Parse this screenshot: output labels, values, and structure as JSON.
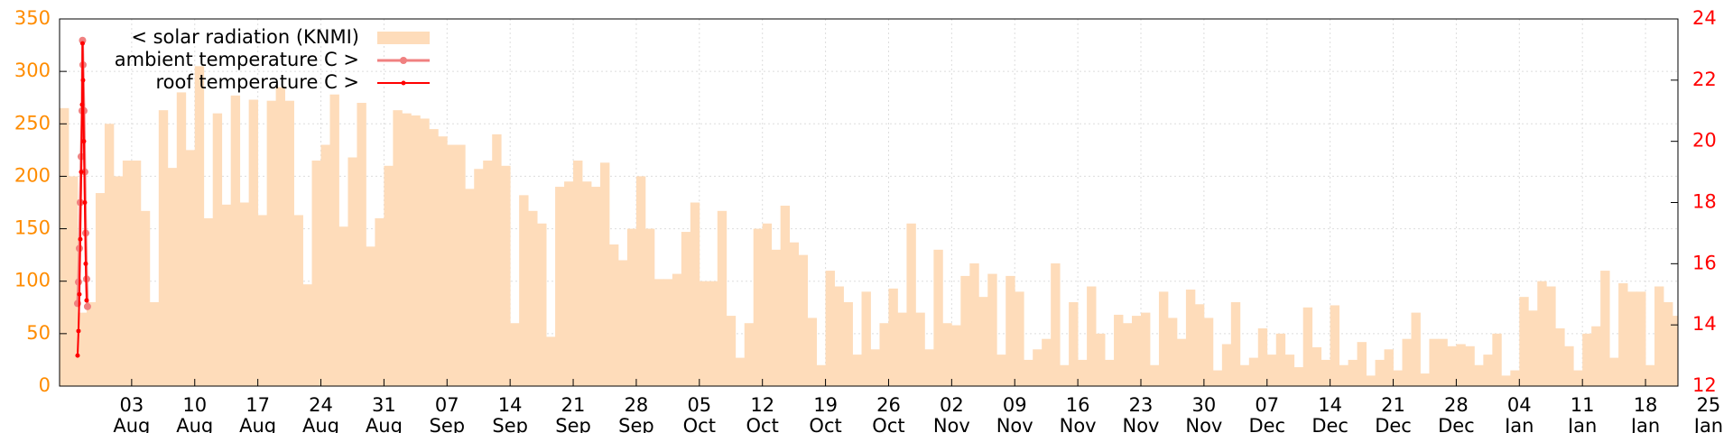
{
  "chart_data": {
    "type": "bar-line",
    "legend": "upper left",
    "grid": true,
    "xlim": [
      0,
      179.6
    ],
    "ylim": [
      0,
      350
    ],
    "yticks": [
      0,
      50,
      100,
      150,
      200,
      250,
      300,
      350
    ],
    "y2lim": [
      12,
      24
    ],
    "y2ticks": [
      12,
      14,
      16,
      18,
      20,
      22,
      24
    ],
    "xticks": [
      {
        "value": 8,
        "label": [
          "03",
          "Aug"
        ]
      },
      {
        "value": 15,
        "label": [
          "10",
          "Aug"
        ]
      },
      {
        "value": 22,
        "label": [
          "17",
          "Aug"
        ]
      },
      {
        "value": 29,
        "label": [
          "24",
          "Aug"
        ]
      },
      {
        "value": 36,
        "label": [
          "31",
          "Aug"
        ]
      },
      {
        "value": 43,
        "label": [
          "07",
          "Sep"
        ]
      },
      {
        "value": 50,
        "label": [
          "14",
          "Sep"
        ]
      },
      {
        "value": 57,
        "label": [
          "21",
          "Sep"
        ]
      },
      {
        "value": 64,
        "label": [
          "28",
          "Sep"
        ]
      },
      {
        "value": 71,
        "label": [
          "05",
          "Oct"
        ]
      },
      {
        "value": 78,
        "label": [
          "12",
          "Oct"
        ]
      },
      {
        "value": 85,
        "label": [
          "19",
          "Oct"
        ]
      },
      {
        "value": 92,
        "label": [
          "26",
          "Oct"
        ]
      },
      {
        "value": 99,
        "label": [
          "02",
          "Nov"
        ]
      },
      {
        "value": 106,
        "label": [
          "09",
          "Nov"
        ]
      },
      {
        "value": 113,
        "label": [
          "16",
          "Nov"
        ]
      },
      {
        "value": 120,
        "label": [
          "23",
          "Nov"
        ]
      },
      {
        "value": 127,
        "label": [
          "30",
          "Nov"
        ]
      },
      {
        "value": 134,
        "label": [
          "07",
          "Dec"
        ]
      },
      {
        "value": 141,
        "label": [
          "14",
          "Dec"
        ]
      },
      {
        "value": 148,
        "label": [
          "21",
          "Dec"
        ]
      },
      {
        "value": 155,
        "label": [
          "28",
          "Dec"
        ]
      },
      {
        "value": 162,
        "label": [
          "04",
          "Jan"
        ]
      },
      {
        "value": 169,
        "label": [
          "11",
          "Jan"
        ]
      },
      {
        "value": 176,
        "label": [
          "18",
          "Jan"
        ]
      },
      {
        "value": 183,
        "label": [
          "25",
          "Jan"
        ]
      }
    ],
    "series": [
      {
        "name": "< solar radiation (KNMI)",
        "type": "bar",
        "color": "#fedcba",
        "x": [
          0,
          1,
          2,
          3,
          4,
          5,
          6,
          7,
          8,
          9,
          10,
          11,
          12,
          13,
          14,
          15,
          16,
          17,
          18,
          19,
          20,
          21,
          22,
          23,
          24,
          25,
          26,
          27,
          28,
          29,
          30,
          31,
          32,
          33,
          34,
          35,
          36,
          37,
          38,
          39,
          40,
          41,
          42,
          43,
          44,
          45,
          46,
          47,
          48,
          49,
          50,
          51,
          52,
          53,
          54,
          55,
          56,
          57,
          58,
          59,
          60,
          61,
          62,
          63,
          64,
          65,
          66,
          67,
          68,
          69,
          70,
          71,
          72,
          73,
          74,
          75,
          76,
          77,
          78,
          79,
          80,
          81,
          82,
          83,
          84,
          85,
          86,
          87,
          88,
          89,
          90,
          91,
          92,
          93,
          94,
          95,
          96,
          97,
          98,
          99,
          100,
          101,
          102,
          103,
          104,
          105,
          106,
          107,
          108,
          109,
          110,
          111,
          112,
          113,
          114,
          115,
          116,
          117,
          118,
          119,
          120,
          121,
          122,
          123,
          124,
          125,
          126,
          127,
          128,
          129,
          130,
          131,
          132,
          133,
          134,
          135,
          136,
          137,
          138,
          139,
          140,
          141,
          142,
          143,
          144,
          145,
          146,
          147,
          148,
          149,
          150,
          151,
          152,
          153,
          154,
          155,
          156,
          157,
          158,
          159,
          160,
          161,
          162,
          163,
          164,
          165,
          166,
          167,
          168,
          169,
          170,
          171,
          172,
          173,
          174,
          175,
          176,
          177,
          178,
          179
        ],
        "values": [
          265,
          200,
          70,
          80,
          184,
          250,
          200,
          215,
          215,
          167,
          80,
          263,
          208,
          280,
          225,
          305,
          160,
          260,
          173,
          277,
          175,
          273,
          163,
          272,
          285,
          272,
          163,
          97,
          215,
          230,
          278,
          152,
          218,
          270,
          133,
          160,
          210,
          263,
          260,
          258,
          255,
          245,
          238,
          230,
          230,
          188,
          207,
          215,
          240,
          210,
          60,
          182,
          167,
          155,
          47,
          190,
          195,
          215,
          195,
          190,
          213,
          135,
          120,
          150,
          200,
          150,
          102,
          102,
          107,
          147,
          175,
          100,
          100,
          167,
          67,
          27,
          60,
          150,
          155,
          130,
          172,
          137,
          125,
          65,
          20,
          110,
          95,
          80,
          30,
          90,
          35,
          60,
          93,
          70,
          155,
          70,
          35,
          130,
          60,
          58,
          105,
          117,
          85,
          107,
          30,
          105,
          90,
          25,
          35,
          45,
          117,
          20,
          80,
          25,
          95,
          50,
          25,
          68,
          60,
          67,
          70,
          20,
          90,
          65,
          45,
          92,
          78,
          65,
          15,
          40,
          80,
          20,
          27,
          55,
          30,
          50,
          30,
          18,
          75,
          37,
          25,
          77,
          20,
          25,
          42,
          10,
          25,
          35,
          15,
          45,
          70,
          12,
          45,
          45,
          38,
          40,
          38,
          20,
          30,
          50,
          10,
          15,
          85,
          72,
          100,
          95,
          55,
          38,
          15,
          50,
          57,
          110,
          27,
          98,
          90,
          90,
          20,
          95,
          80,
          67
        ]
      },
      {
        "name": "ambient temperature C >",
        "type": "line",
        "axis": "y2",
        "color": "#f08080",
        "marker": "circle",
        "x": [
          2.0,
          2.1,
          2.2,
          2.3,
          2.4,
          2.5,
          2.55,
          2.6,
          2.7,
          2.8,
          2.9,
          3.0,
          3.1
        ],
        "values": [
          14.7,
          15.4,
          16.5,
          18.0,
          19.5,
          21.0,
          23.3,
          22.5,
          21.0,
          19.0,
          17.0,
          15.5,
          14.6
        ]
      },
      {
        "name": "roof temperature C >",
        "type": "line",
        "axis": "y2",
        "color": "#ff0000",
        "marker": "dot",
        "x": [
          2.0,
          2.1,
          2.2,
          2.3,
          2.4,
          2.5,
          2.55,
          2.6,
          2.7,
          2.8,
          2.9,
          3.0
        ],
        "values": [
          13.0,
          13.8,
          15.0,
          16.8,
          19.0,
          21.2,
          23.2,
          22.0,
          20.0,
          18.0,
          16.0,
          14.8
        ]
      }
    ]
  }
}
